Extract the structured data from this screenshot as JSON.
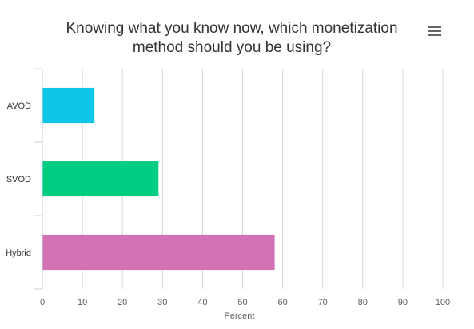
{
  "title_line1": "Knowing what you know now, which monetization",
  "title_line2": "method should you be using?",
  "menu_icon": "hamburger-menu-icon",
  "chart_data": {
    "type": "bar",
    "orientation": "horizontal",
    "title": "Knowing what you know now, which monetization method should you be using?",
    "categories": [
      "AVOD",
      "SVOD",
      "Hybrid"
    ],
    "values": [
      13,
      29,
      58
    ],
    "colors": [
      "#0ec7e8",
      "#00cc82",
      "#d272b4"
    ],
    "xlabel": "Percent",
    "ylabel": "",
    "xlim": [
      0,
      100
    ],
    "xticks": [
      0,
      10,
      20,
      30,
      40,
      50,
      60,
      70,
      80,
      90,
      100
    ],
    "grid": true,
    "legend": "none"
  }
}
